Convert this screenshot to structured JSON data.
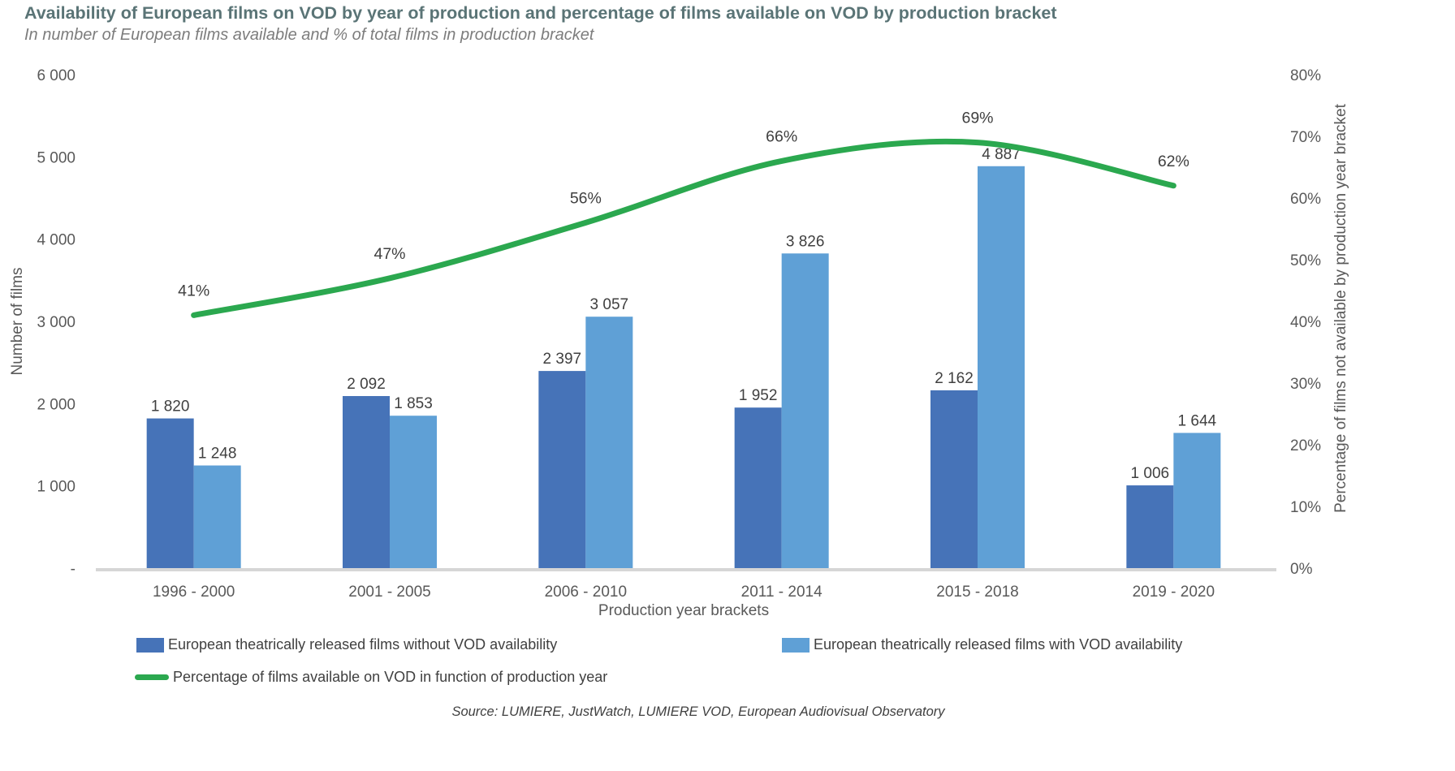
{
  "chart": {
    "title": "Availability of European films on VOD by year of production and percentage of films available on VOD by production bracket",
    "subtitle": "In number of European films available and % of total films in production bracket",
    "source": "Source: LUMIERE, JustWatch, LUMIERE VOD, European Audiovisual Observatory"
  },
  "chart_data": {
    "type": "bar",
    "subtype": "grouped bars with smooth line overlay on secondary axis",
    "categories": [
      "1996 - 2000",
      "2001 - 2005",
      "2006 - 2010",
      "2011 - 2014",
      "2015 - 2018",
      "2019 - 2020"
    ],
    "series": [
      {
        "name": "European theatrically released films without VOD availability",
        "type": "bar",
        "axis": "left",
        "color": "#4673B8",
        "values": [
          1820,
          2092,
          2397,
          1952,
          2162,
          1006
        ],
        "labels": [
          "1 820",
          "2 092",
          "2 397",
          "1 952",
          "2 162",
          "1 006"
        ]
      },
      {
        "name": "European theatrically released films with VOD availability",
        "type": "bar",
        "axis": "left",
        "color": "#5FA0D6",
        "values": [
          1248,
          1853,
          3057,
          3826,
          4887,
          1644
        ],
        "labels": [
          "1 248",
          "1 853",
          "3 057",
          "3 826",
          "4 887",
          "1 644"
        ]
      },
      {
        "name": "Percentage of films available on VOD in function of production year",
        "type": "line",
        "axis": "right",
        "color": "#2BA84F",
        "smooth": true,
        "values": [
          41,
          47,
          56,
          66,
          69,
          62
        ],
        "labels": [
          "41%",
          "47%",
          "56%",
          "66%",
          "69%",
          "62%"
        ]
      }
    ],
    "xlabel": "Production year brackets",
    "ylabel_left": "Number of films",
    "ylabel_right": "Percentage of films not available by production year bracket",
    "yticks_left": [
      "6 000",
      "5 000",
      "4 000",
      "3 000",
      "2 000",
      "1 000",
      "-"
    ],
    "yticks_right": [
      "80%",
      "70%",
      "60%",
      "50%",
      "40%",
      "30%",
      "20%",
      "10%",
      "0%"
    ],
    "ylim_left": [
      0,
      6000
    ],
    "ylim_right": [
      0,
      80
    ],
    "grid": false,
    "legend_position": "bottom-left",
    "axis_line_color": "#D6D6D6"
  }
}
